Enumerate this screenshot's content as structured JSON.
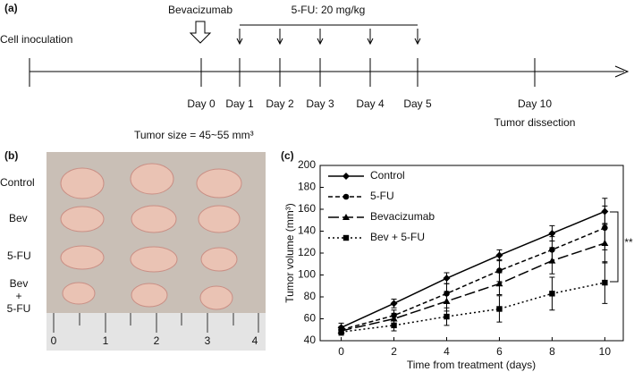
{
  "timeline": {
    "panel": "(a)",
    "start": "Cell inoculation",
    "drug": "Bevacizumab",
    "dosing": "5-FU: 20 mg/kg",
    "days": [
      "Day 0",
      "Day 1",
      "Day 2",
      "Day 3",
      "Day 4",
      "Day 5",
      "Day 10"
    ],
    "tumor_size": "Tumor size = 45~55 mm³",
    "end": "Tumor dissection"
  },
  "photo": {
    "panel": "(b)",
    "rows": [
      "Control",
      "Bev",
      "5-FU"
    ],
    "combo": [
      "Bev",
      "+",
      "5-FU"
    ],
    "ruler_labels": [
      "0",
      "1",
      "2",
      "3",
      "4"
    ]
  },
  "chart_data": {
    "type": "line",
    "panel": "(c)",
    "x_label": "Time from treatment (days)",
    "y_label": "Tumor volume (mm³)",
    "x": [
      0,
      2,
      4,
      6,
      8,
      10
    ],
    "series": [
      {
        "name": "Control",
        "color": "#000000",
        "dash": "none",
        "marker": "diamond",
        "values": [
          52,
          74,
          97,
          118,
          138,
          158
        ],
        "errors": [
          4,
          4,
          5,
          5,
          7,
          12
        ]
      },
      {
        "name": "5-FU",
        "color": "#000000",
        "dash": "5,3",
        "marker": "circle",
        "values": [
          50,
          63,
          83,
          104,
          123,
          143
        ],
        "errors": [
          3,
          5,
          9,
          10,
          12,
          20
        ]
      },
      {
        "name": "Bevacizumab",
        "color": "#000000",
        "dash": "12,4",
        "marker": "triangle",
        "values": [
          49,
          60,
          76,
          92,
          113,
          129
        ],
        "errors": [
          3,
          5,
          9,
          10,
          12,
          18
        ]
      },
      {
        "name": "Bev + 5-FU",
        "color": "#000000",
        "dash": "2,3",
        "marker": "square",
        "values": [
          48,
          54,
          62,
          69,
          83,
          93
        ],
        "errors": [
          3,
          5,
          8,
          12,
          15,
          19
        ]
      }
    ],
    "xlim": [
      -0.8,
      10.7
    ],
    "ylim": [
      40,
      200
    ],
    "xticks": [
      0,
      2,
      4,
      6,
      8,
      10
    ],
    "yticks": [
      40,
      60,
      80,
      100,
      120,
      140,
      160,
      180,
      200
    ],
    "grid": false,
    "legend": "top-left",
    "annotation": "**"
  }
}
